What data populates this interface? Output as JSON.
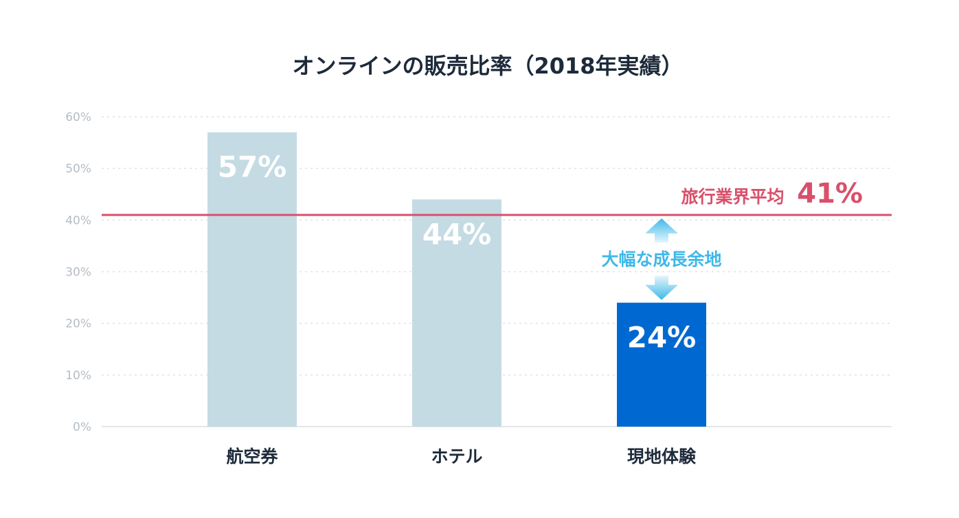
{
  "chart_data": {
    "type": "bar",
    "title": "オンラインの販売比率（2018年実績）",
    "categories": [
      "航空券",
      "ホテル",
      "現地体験"
    ],
    "values": [
      57,
      44,
      24
    ],
    "value_labels": [
      "57%",
      "44%",
      "24%"
    ],
    "ylim": [
      0,
      60
    ],
    "yticks": [
      0,
      10,
      20,
      30,
      40,
      50,
      60
    ],
    "ytick_labels": [
      "0%",
      "10%",
      "20%",
      "30%",
      "40%",
      "50%",
      "60%"
    ],
    "grid": true,
    "bar_colors": [
      "#c4dbe3",
      "#c4dbe3",
      "#0069d1"
    ],
    "reference_line": {
      "value": 41,
      "label": "旅行業界平均",
      "value_label": "41%",
      "color": "#d9506b"
    },
    "annotation": {
      "text": "大幅な成長余地",
      "color": "#3eb8e8",
      "from_value": 24,
      "to_value": 41,
      "category": "現地体験"
    }
  }
}
